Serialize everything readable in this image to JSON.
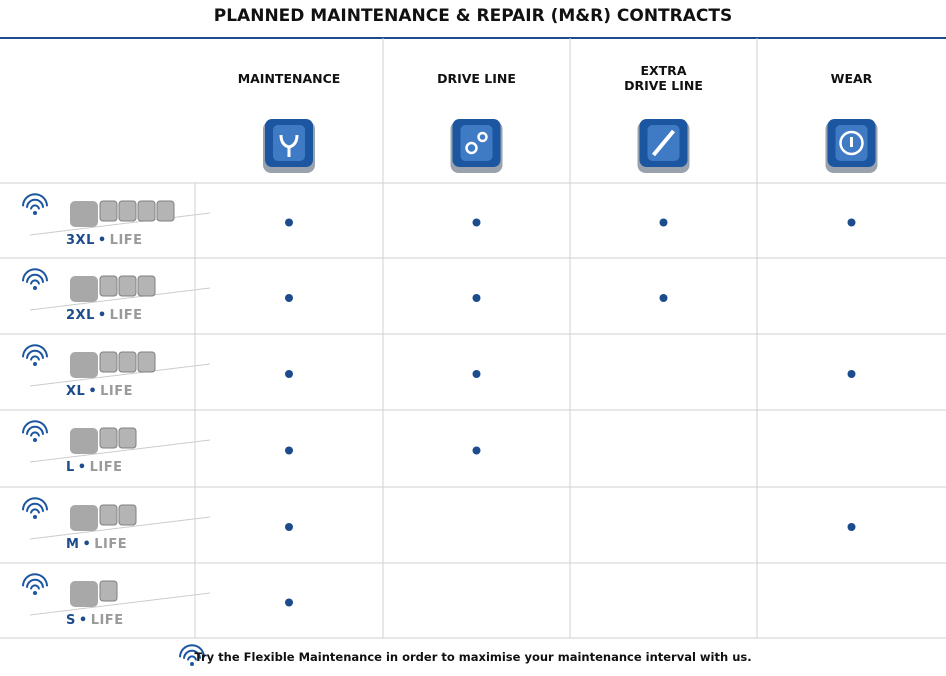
{
  "header": {
    "title": "PLANNED MAINTENANCE & REPAIR (M&R) CONTRACTS"
  },
  "table": {
    "columns": [
      "MAINTENANCE",
      "DRIVE LINE",
      "EXTRA DRIVE LINE",
      "WEAR"
    ],
    "rows": [
      {
        "name": "3XL",
        "suffix": "LIFE",
        "cells": [
          true,
          true,
          true,
          true
        ]
      },
      {
        "name": "2XL",
        "suffix": "LIFE",
        "cells": [
          true,
          true,
          true,
          false
        ]
      },
      {
        "name": "XL",
        "suffix": "LIFE",
        "cells": [
          true,
          true,
          false,
          true
        ]
      },
      {
        "name": "L",
        "suffix": "LIFE",
        "cells": [
          true,
          true,
          false,
          false
        ]
      },
      {
        "name": "M",
        "suffix": "LIFE",
        "cells": [
          true,
          false,
          false,
          true
        ]
      },
      {
        "name": "S",
        "suffix": "LIFE",
        "cells": [
          true,
          false,
          false,
          false
        ]
      }
    ]
  },
  "footer": {
    "note": "Try the Flexible Maintenance in order to maximise your maintenance interval with us."
  }
}
